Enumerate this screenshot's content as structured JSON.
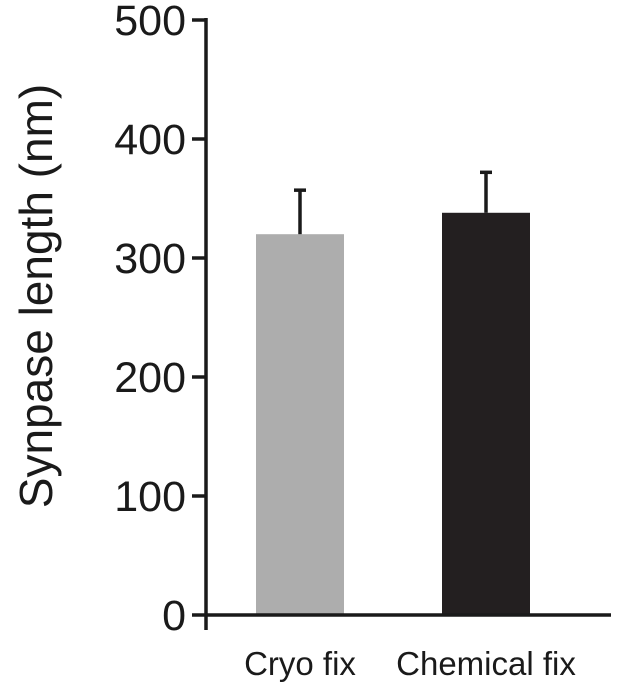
{
  "chart_data": {
    "type": "bar",
    "title": "",
    "xlabel": "",
    "ylabel": "Synpase length (nm)",
    "ylim": [
      0,
      500
    ],
    "yticks": [
      "0",
      "100",
      "200",
      "300",
      "400",
      "500"
    ],
    "yticks_values": [
      0,
      100,
      200,
      300,
      400,
      500
    ],
    "categories": [
      "Cryo fix",
      "Chemical fix"
    ],
    "values": [
      320,
      338
    ],
    "error_upper": [
      37,
      34
    ],
    "colors": [
      "#adadad",
      "#231f20"
    ],
    "grid": false,
    "legend": "none"
  }
}
